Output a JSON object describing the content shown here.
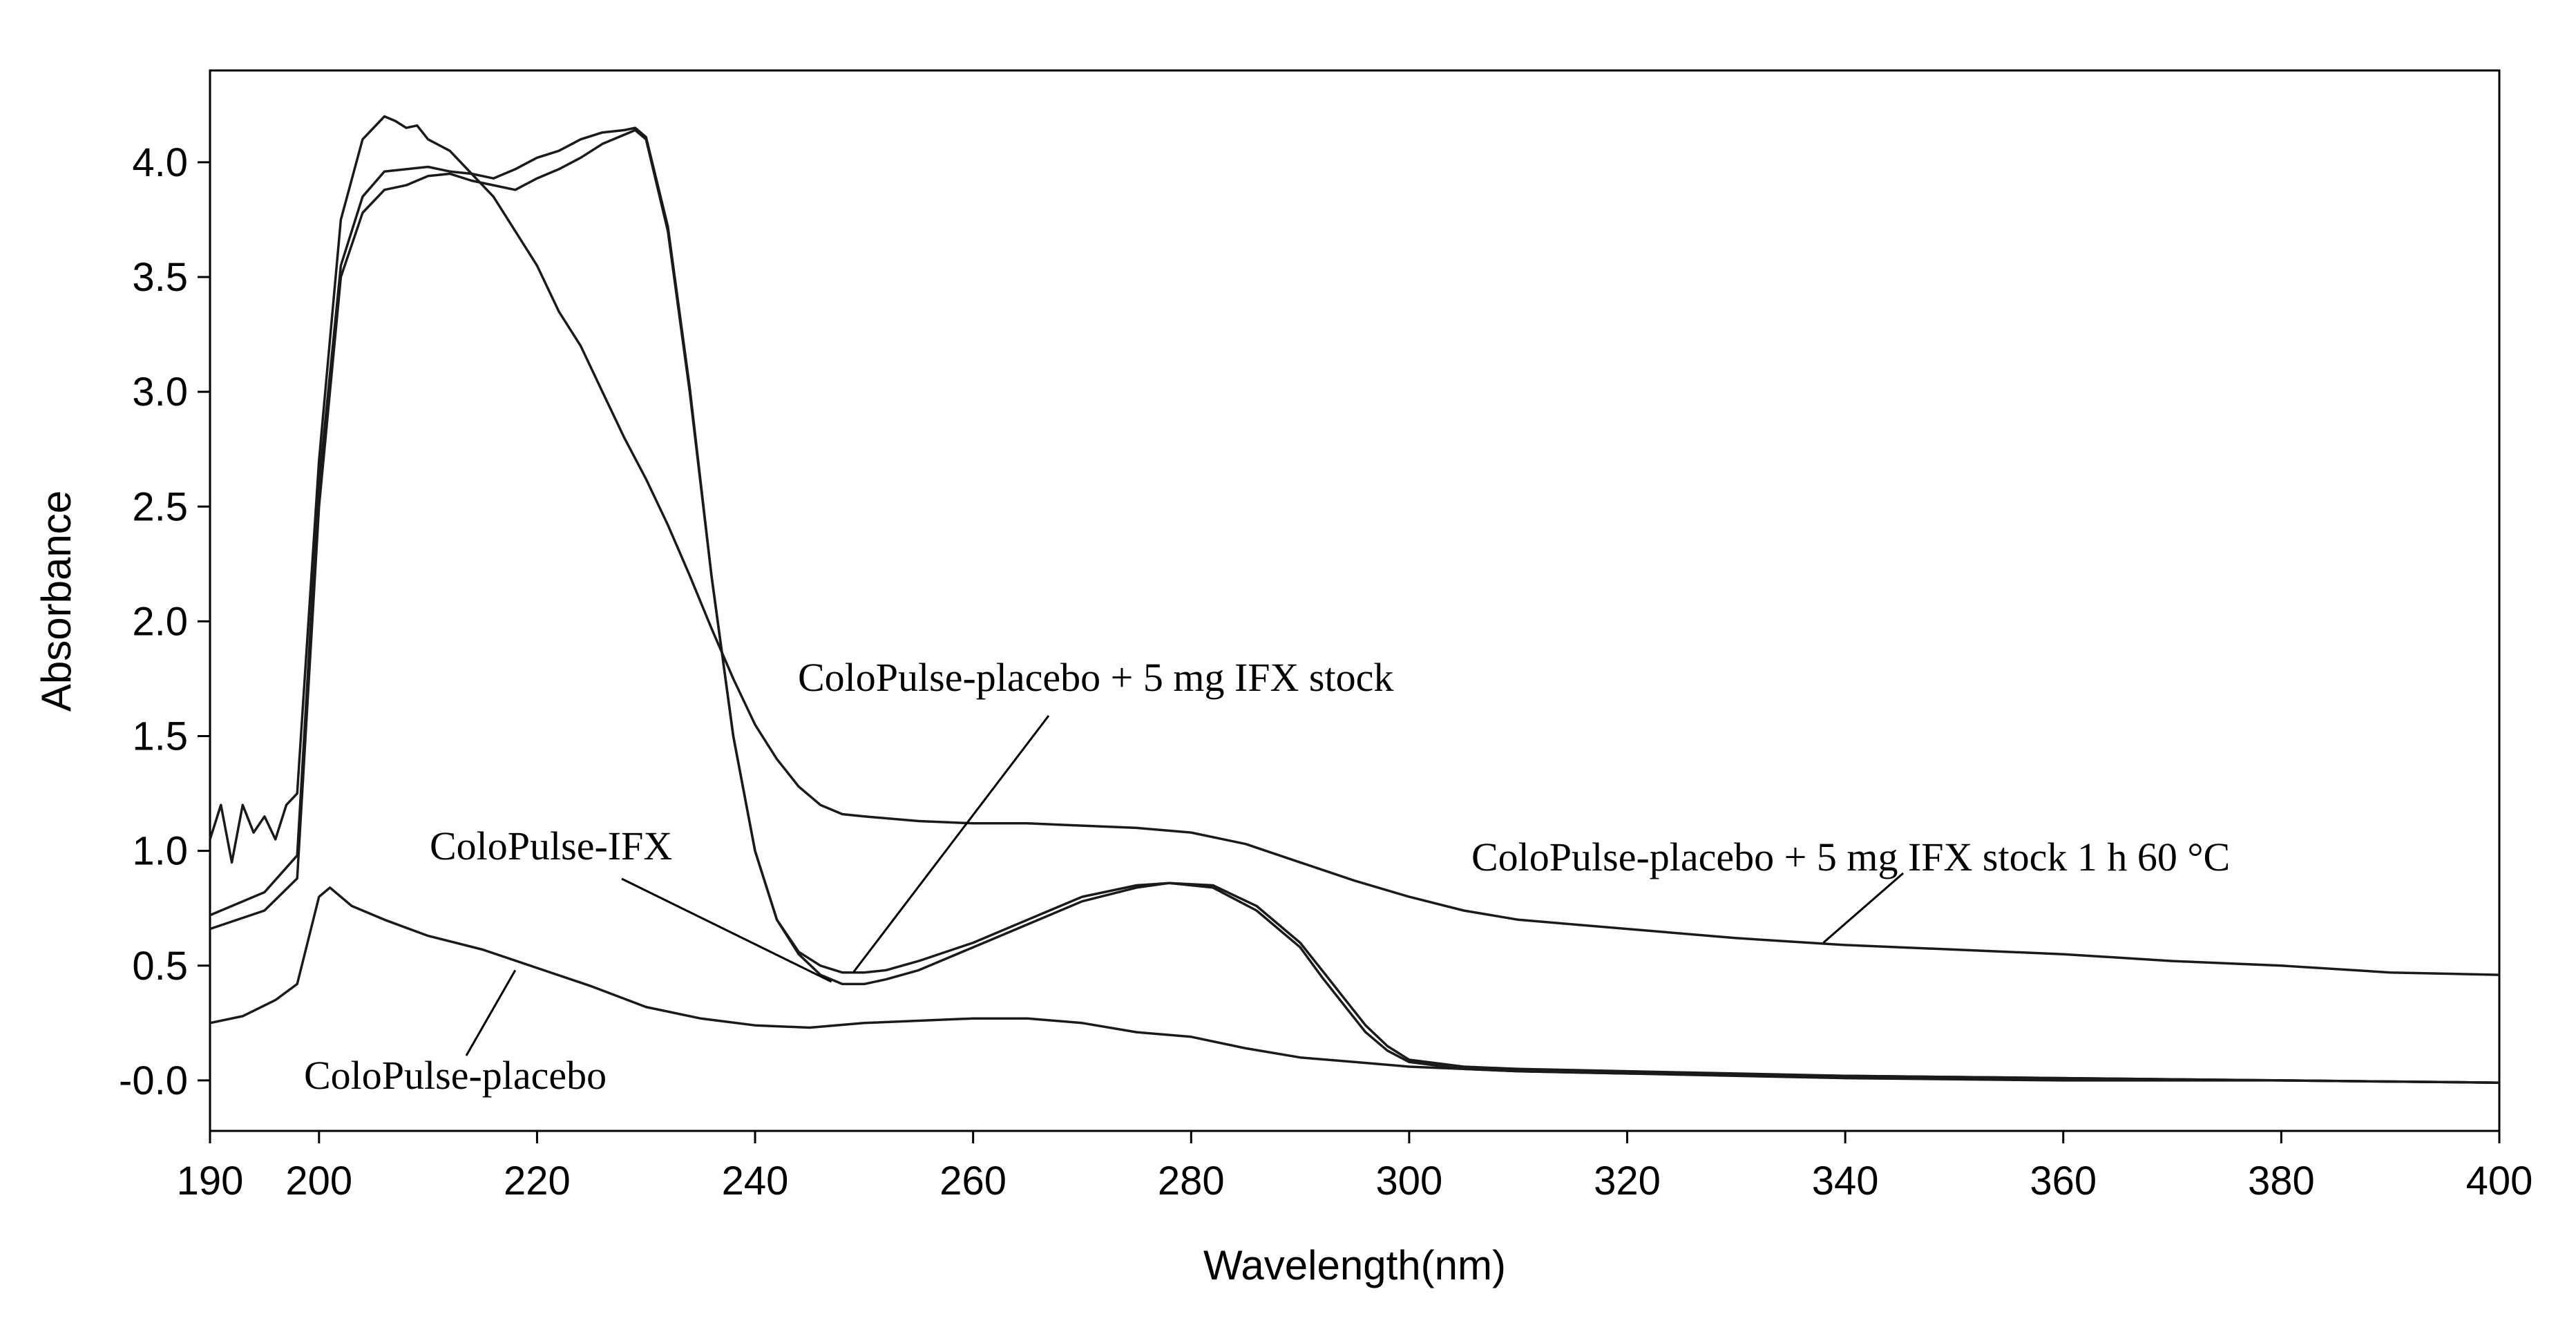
{
  "chart_data": {
    "type": "line",
    "title": "",
    "xlabel": "Wavelength(nm)",
    "ylabel": "Absorbance",
    "xlim": [
      190,
      400
    ],
    "ylim": [
      -0.22,
      4.4
    ],
    "x_ticks": [
      190,
      200,
      220,
      240,
      260,
      280,
      300,
      320,
      340,
      360,
      380,
      400
    ],
    "x_tick_labels": [
      "190",
      "200",
      "220",
      "240",
      "260",
      "280",
      "300",
      "320",
      "340",
      "360",
      "380",
      "400"
    ],
    "y_ticks": [
      0,
      0.5,
      1.0,
      1.5,
      2.0,
      2.5,
      3.0,
      3.5,
      4.0
    ],
    "y_tick_labels": [
      "-0.0",
      "0.5",
      "1.0",
      "1.5",
      "2.0",
      "2.5",
      "3.0",
      "3.5",
      "4.0"
    ],
    "grid": false,
    "series": [
      {
        "name": "ColoPulse-IFX",
        "x": [
          190,
          195,
          198,
          200,
          202,
          204,
          206,
          208,
          210,
          212,
          214,
          216,
          218,
          220,
          222,
          224,
          226,
          228,
          229,
          230,
          232,
          234,
          236,
          238,
          240,
          242,
          244,
          246,
          248,
          250,
          252,
          255,
          260,
          265,
          270,
          275,
          278,
          282,
          286,
          290,
          292,
          294,
          296,
          298,
          300,
          305,
          310,
          320,
          340,
          360,
          380,
          400
        ],
        "y": [
          0.66,
          0.74,
          0.88,
          2.5,
          3.5,
          3.78,
          3.88,
          3.9,
          3.94,
          3.95,
          3.92,
          3.9,
          3.88,
          3.93,
          3.97,
          4.02,
          4.08,
          4.12,
          4.14,
          4.1,
          3.7,
          3.0,
          2.2,
          1.5,
          1.0,
          0.7,
          0.55,
          0.46,
          0.42,
          0.42,
          0.44,
          0.48,
          0.58,
          0.68,
          0.78,
          0.84,
          0.86,
          0.85,
          0.76,
          0.6,
          0.48,
          0.36,
          0.24,
          0.15,
          0.09,
          0.06,
          0.05,
          0.04,
          0.02,
          0.01,
          0.0,
          -0.01
        ]
      },
      {
        "name": "ColoPulse-placebo + 5 mg IFX stock",
        "x": [
          190,
          195,
          198,
          200,
          202,
          204,
          206,
          208,
          210,
          212,
          214,
          216,
          218,
          220,
          222,
          224,
          226,
          228,
          229,
          230,
          232,
          234,
          236,
          238,
          240,
          242,
          244,
          246,
          248,
          250,
          252,
          255,
          260,
          265,
          270,
          275,
          278,
          282,
          286,
          290,
          292,
          294,
          296,
          298,
          300,
          305,
          310,
          320,
          340,
          360,
          380,
          400
        ],
        "y": [
          0.72,
          0.82,
          0.98,
          2.6,
          3.55,
          3.85,
          3.96,
          3.97,
          3.98,
          3.96,
          3.95,
          3.93,
          3.97,
          4.02,
          4.05,
          4.1,
          4.13,
          4.14,
          4.15,
          4.11,
          3.72,
          3.02,
          2.2,
          1.5,
          1.0,
          0.7,
          0.56,
          0.5,
          0.47,
          0.47,
          0.48,
          0.52,
          0.6,
          0.7,
          0.8,
          0.85,
          0.86,
          0.84,
          0.74,
          0.58,
          0.45,
          0.33,
          0.21,
          0.13,
          0.08,
          0.05,
          0.04,
          0.03,
          0.02,
          0.01,
          0.0,
          -0.01
        ]
      },
      {
        "name": "ColoPulse-placebo + 5 mg IFX stock 1 h 60 °C",
        "x": [
          190,
          191,
          192,
          193,
          194,
          195,
          196,
          197,
          198,
          200,
          202,
          204,
          206,
          207,
          208,
          209,
          210,
          212,
          214,
          216,
          218,
          220,
          222,
          224,
          226,
          228,
          230,
          232,
          234,
          236,
          238,
          240,
          242,
          244,
          246,
          248,
          250,
          255,
          260,
          265,
          270,
          275,
          280,
          285,
          290,
          295,
          300,
          305,
          310,
          320,
          330,
          340,
          350,
          360,
          370,
          380,
          390,
          400
        ],
        "y": [
          1.05,
          1.2,
          0.95,
          1.2,
          1.08,
          1.15,
          1.05,
          1.2,
          1.25,
          2.7,
          3.75,
          4.1,
          4.2,
          4.18,
          4.15,
          4.16,
          4.1,
          4.05,
          3.95,
          3.85,
          3.7,
          3.55,
          3.35,
          3.2,
          3.0,
          2.8,
          2.62,
          2.42,
          2.2,
          1.97,
          1.75,
          1.55,
          1.4,
          1.28,
          1.2,
          1.16,
          1.15,
          1.13,
          1.12,
          1.12,
          1.11,
          1.1,
          1.08,
          1.03,
          0.95,
          0.87,
          0.8,
          0.74,
          0.7,
          0.66,
          0.62,
          0.59,
          0.57,
          0.55,
          0.52,
          0.5,
          0.47,
          0.46
        ]
      },
      {
        "name": "ColoPulse-placebo",
        "x": [
          190,
          193,
          196,
          198,
          200,
          201,
          203,
          206,
          210,
          215,
          220,
          225,
          230,
          235,
          240,
          245,
          250,
          255,
          260,
          265,
          270,
          275,
          280,
          285,
          290,
          295,
          300,
          310,
          320,
          340,
          360,
          380,
          400
        ],
        "y": [
          0.25,
          0.28,
          0.35,
          0.42,
          0.8,
          0.84,
          0.76,
          0.7,
          0.63,
          0.57,
          0.49,
          0.41,
          0.32,
          0.27,
          0.24,
          0.23,
          0.25,
          0.26,
          0.27,
          0.27,
          0.25,
          0.21,
          0.19,
          0.14,
          0.1,
          0.08,
          0.06,
          0.04,
          0.03,
          0.01,
          0.0,
          0.0,
          -0.01
        ]
      }
    ],
    "annotations": [
      {
        "text": "ColoPulse-placebo + 5 mg IFX stock",
        "points_to_series": "ColoPulse-placebo + 5 mg IFX stock",
        "target_x": 249,
        "target_y": 0.47
      },
      {
        "text": "ColoPulse-IFX",
        "points_to_series": "ColoPulse-IFX",
        "target_x": 247,
        "target_y": 0.43
      },
      {
        "text": "ColoPulse-placebo + 5 mg IFX stock 1 h 60 °C",
        "points_to_series": "ColoPulse-placebo + 5 mg IFX stock 1 h 60 °C",
        "target_x": 338,
        "target_y": 0.6
      },
      {
        "text": "ColoPulse-placebo",
        "points_to_series": "ColoPulse-placebo",
        "target_x": 218,
        "target_y": 0.48
      }
    ]
  }
}
